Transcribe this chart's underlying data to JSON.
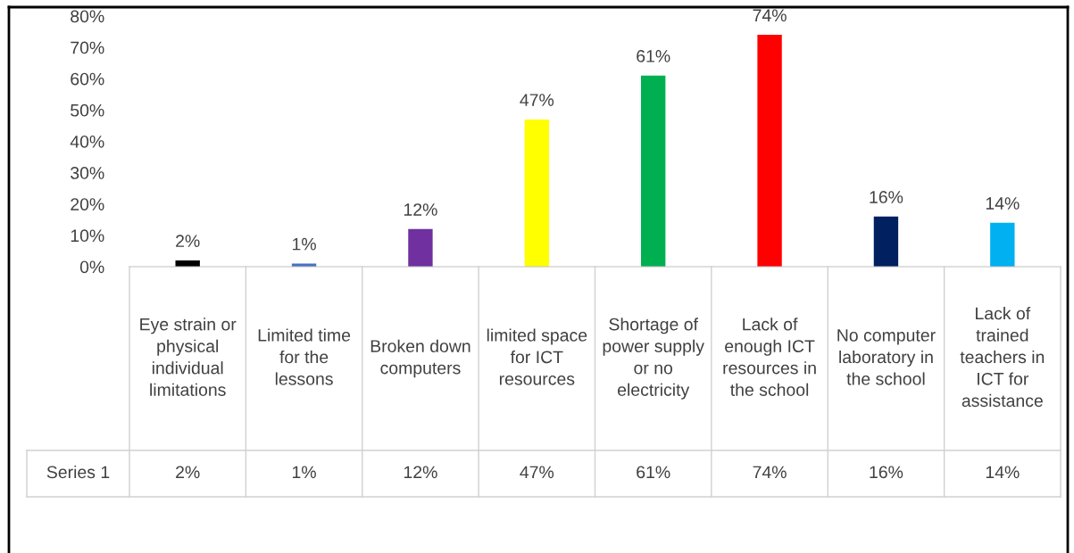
{
  "chart_data": {
    "type": "bar",
    "categories": [
      "Eye strain or physical individual limitations",
      "Limited time for the lessons",
      "Broken down computers",
      "limited space for ICT resources",
      "Shortage of power supply or no electricity",
      "Lack of enough ICT resources in the school",
      "No computer laboratory in the school",
      "Lack of trained teachers in ICT for assistance"
    ],
    "series": [
      {
        "name": "Series 1",
        "colors": [
          "#000000",
          "#4472c4",
          "#7030a0",
          "#ffff00",
          "#00b050",
          "#ff0000",
          "#002060",
          "#00b0f0"
        ],
        "values": [
          2,
          1,
          12,
          47,
          61,
          74,
          16,
          14
        ],
        "value_labels": [
          "2%",
          "1%",
          "12%",
          "47%",
          "61%",
          "74%",
          "16%",
          "14%"
        ]
      }
    ],
    "ylim": [
      0,
      80
    ],
    "yticks": [
      {
        "value": 0,
        "label": "0%"
      },
      {
        "value": 10,
        "label": "10%"
      },
      {
        "value": 20,
        "label": "20%"
      },
      {
        "value": 30,
        "label": "30%"
      },
      {
        "value": 40,
        "label": "40%"
      },
      {
        "value": 50,
        "label": "50%"
      },
      {
        "value": 60,
        "label": "60%"
      },
      {
        "value": 70,
        "label": "70%"
      },
      {
        "value": 80,
        "label": "80%"
      }
    ],
    "grid": false,
    "legend": false
  }
}
